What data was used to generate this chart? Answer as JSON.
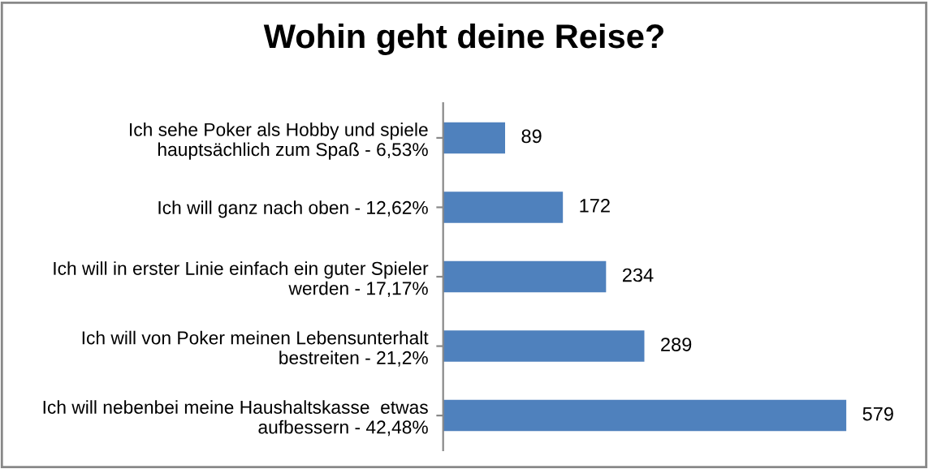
{
  "chart_data": {
    "type": "bar",
    "orientation": "horizontal",
    "title": "Wohin geht deine Reise?",
    "categories": [
      "Ich sehe Poker als Hobby und spiele\nhauptsächlich zum Spaß - 6,53%",
      "Ich will ganz nach oben - 12,62%",
      "Ich will in erster Linie einfach ein guter Spieler\nwerden - 17,17%",
      "Ich will von Poker meinen Lebensunterhalt\nbestreiten - 21,2%",
      "Ich will nebenbei meine Haushaltskasse  etwas\naufbessern - 42,48%"
    ],
    "values": [
      89,
      172,
      234,
      289,
      579
    ],
    "color": "#4f81bd",
    "data_labels": true,
    "grid": false,
    "legend": false
  }
}
